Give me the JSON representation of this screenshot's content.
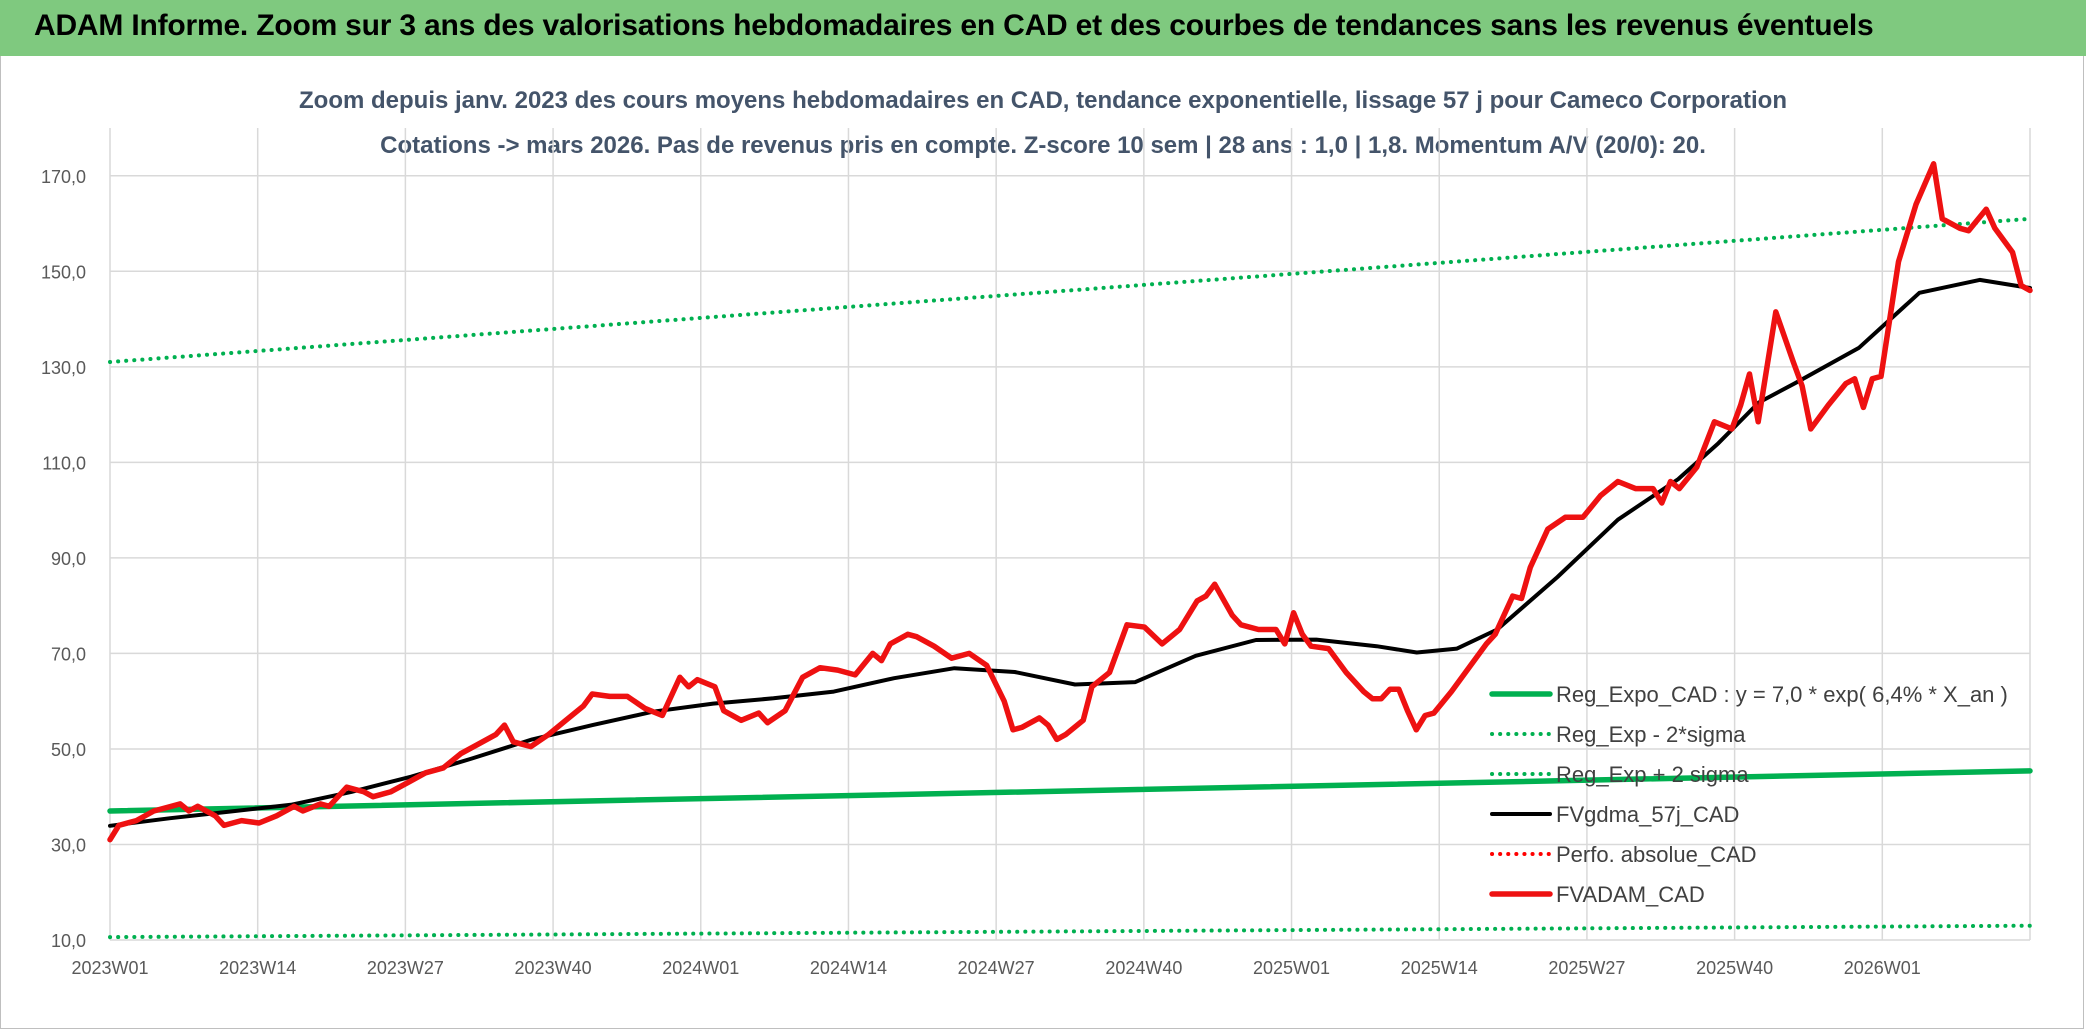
{
  "banner": {
    "title": "ADAM Informe. Zoom sur 3 ans des valorisations hebdomadaires en CAD et des courbes de tendances sans les revenus éventuels"
  },
  "colors": {
    "banner_bg": "#7fc97f",
    "reg_expo": "#00b050",
    "reg_band": "#00b050",
    "fvgdma": "#000000",
    "perfo": "#ff0000",
    "fvadam": "#ee1111",
    "grid": "#d9d9d9",
    "title_text": "#44546a"
  },
  "chart_data": {
    "type": "line",
    "title": "Zoom depuis janv. 2023 des cours moyens hebdomadaires en CAD, tendance exponentielle, lissage 57 j pour Cameco Corporation",
    "subtitle": "Cotations -> mars 2026. Pas de revenus pris en compte. Z-score 10 sem | 28 ans : 1,0 | 1,8. Momentum A/V (20/0): 20.",
    "xlabel": "",
    "ylabel": "",
    "ylim": [
      10,
      180
    ],
    "yticks": [
      "10,0",
      "30,0",
      "50,0",
      "70,0",
      "90,0",
      "110,0",
      "130,0",
      "150,0",
      "170,0"
    ],
    "x_tick_labels": [
      "2023W01",
      "2023W14",
      "2023W27",
      "2023W40",
      "2024W01",
      "2024W14",
      "2024W27",
      "2024W40",
      "2025W01",
      "2025W14",
      "2025W27",
      "2025W40",
      "2026W01"
    ],
    "n_weeks": 168,
    "grid": true,
    "legend_position": "bottom-right",
    "series": [
      {
        "name": "Reg_Expo_CAD : y = 7,0 * exp( 6,4% *  X_an )",
        "style": "solid-thick",
        "color": "#00b050",
        "points": [
          [
            0,
            37.0
          ],
          [
            167,
            45.4
          ]
        ]
      },
      {
        "name": "Reg_Exp - 2*sigma",
        "style": "dotted",
        "color": "#00b050",
        "points": [
          [
            0,
            10.6
          ],
          [
            167,
            13.0
          ]
        ]
      },
      {
        "name": "Reg_Exp + 2 sigma",
        "style": "dotted",
        "color": "#00b050",
        "points": [
          [
            0,
            131.0
          ],
          [
            167,
            161.0
          ]
        ]
      },
      {
        "name": "FVgdma_57j_CAD",
        "style": "solid",
        "color": "#000000",
        "points": [
          [
            0,
            33.9
          ],
          [
            6,
            35.5
          ],
          [
            12,
            36.9
          ],
          [
            18,
            38.3
          ],
          [
            24,
            41.0
          ],
          [
            30,
            44.2
          ],
          [
            36,
            48.0
          ],
          [
            42,
            52.0
          ],
          [
            48,
            55.0
          ],
          [
            54,
            57.8
          ],
          [
            60,
            59.5
          ],
          [
            66,
            60.6
          ],
          [
            72,
            62.0
          ],
          [
            78,
            64.8
          ],
          [
            84,
            66.9
          ],
          [
            90,
            66.1
          ],
          [
            96,
            63.5
          ],
          [
            102,
            64.0
          ],
          [
            108,
            69.5
          ],
          [
            114,
            72.8
          ],
          [
            120,
            72.9
          ],
          [
            126,
            71.5
          ],
          [
            130,
            70.2
          ],
          [
            134,
            71.0
          ],
          [
            138,
            75.0
          ],
          [
            144,
            86.0
          ],
          [
            150,
            98.0
          ],
          [
            156,
            106.5
          ],
          [
            160,
            114.0
          ],
          [
            164,
            122.5
          ],
          [
            168,
            127.0
          ],
          [
            174,
            134.0
          ],
          [
            180,
            145.5
          ],
          [
            186,
            148.2
          ],
          [
            191,
            146.5
          ]
        ]
      },
      {
        "name": "Perfo. absolue_CAD",
        "style": "dotted",
        "color": "#ff0000",
        "points": []
      },
      {
        "name": "FVADAM_CAD",
        "style": "solid-thick",
        "color": "#ee1111",
        "points": [
          [
            0,
            31.0
          ],
          [
            1,
            34.0
          ],
          [
            3,
            35.0
          ],
          [
            5,
            37.0
          ],
          [
            7,
            38.0
          ],
          [
            8,
            38.5
          ],
          [
            9,
            37.0
          ],
          [
            10,
            38.0
          ],
          [
            12,
            36.0
          ],
          [
            13,
            34.0
          ],
          [
            15,
            35.0
          ],
          [
            17,
            34.5
          ],
          [
            19,
            36.0
          ],
          [
            21,
            38.0
          ],
          [
            22,
            37.0
          ],
          [
            24,
            38.5
          ],
          [
            25,
            38.0
          ],
          [
            27,
            42.0
          ],
          [
            29,
            41.0
          ],
          [
            30,
            40.0
          ],
          [
            32,
            41.0
          ],
          [
            34,
            43.0
          ],
          [
            36,
            45.0
          ],
          [
            38,
            46.0
          ],
          [
            40,
            49.0
          ],
          [
            42,
            51.0
          ],
          [
            44,
            53.0
          ],
          [
            45,
            55.0
          ],
          [
            46,
            51.5
          ],
          [
            48,
            50.5
          ],
          [
            50,
            53.0
          ],
          [
            52,
            56.0
          ],
          [
            54,
            59.0
          ],
          [
            55,
            61.5
          ],
          [
            57,
            61.0
          ],
          [
            59,
            61.0
          ],
          [
            61,
            58.5
          ],
          [
            63,
            57.0
          ],
          [
            65,
            65.0
          ],
          [
            66,
            63.0
          ],
          [
            67,
            64.5
          ],
          [
            69,
            63.0
          ],
          [
            70,
            58.0
          ],
          [
            72,
            56.0
          ],
          [
            74,
            57.5
          ],
          [
            75,
            55.5
          ],
          [
            77,
            58.0
          ],
          [
            79,
            65.0
          ],
          [
            81,
            67.0
          ],
          [
            83,
            66.5
          ],
          [
            85,
            65.5
          ],
          [
            87,
            70.0
          ],
          [
            88,
            68.5
          ],
          [
            89,
            72.0
          ],
          [
            91,
            74.0
          ],
          [
            92,
            73.5
          ],
          [
            94,
            71.5
          ],
          [
            96,
            69.0
          ],
          [
            98,
            70.0
          ],
          [
            100,
            67.5
          ],
          [
            102,
            60.0
          ],
          [
            103,
            54.0
          ],
          [
            104,
            54.5
          ],
          [
            106,
            56.5
          ],
          [
            107,
            55.0
          ],
          [
            108,
            52.0
          ],
          [
            109,
            53.0
          ],
          [
            111,
            56.0
          ],
          [
            112,
            63.0
          ],
          [
            114,
            66.0
          ],
          [
            116,
            76.0
          ],
          [
            118,
            75.5
          ],
          [
            120,
            72.0
          ],
          [
            122,
            75.0
          ],
          [
            124,
            81.0
          ],
          [
            125,
            82.0
          ],
          [
            126,
            84.5
          ],
          [
            128,
            78.0
          ],
          [
            129,
            76.0
          ],
          [
            131,
            75.0
          ],
          [
            133,
            75.0
          ],
          [
            134,
            72.0
          ],
          [
            135,
            78.5
          ],
          [
            136,
            74.0
          ],
          [
            137,
            71.5
          ],
          [
            139,
            71.0
          ],
          [
            141,
            66.0
          ],
          [
            143,
            62.0
          ],
          [
            144,
            60.5
          ],
          [
            145,
            60.5
          ],
          [
            146,
            62.5
          ],
          [
            147,
            62.5
          ],
          [
            148,
            58.0
          ],
          [
            149,
            54.0
          ],
          [
            150,
            57.0
          ],
          [
            151,
            57.5
          ],
          [
            153,
            62.0
          ],
          [
            155,
            67.0
          ],
          [
            157,
            72.0
          ],
          [
            158,
            74.0
          ],
          [
            160,
            82.0
          ],
          [
            161,
            81.5
          ],
          [
            162,
            88.0
          ],
          [
            164,
            96.0
          ],
          [
            166,
            98.5
          ],
          [
            168,
            98.5
          ],
          [
            170,
            103.0
          ],
          [
            172,
            106.0
          ],
          [
            174,
            104.5
          ],
          [
            176,
            104.5
          ],
          [
            177,
            101.5
          ],
          [
            178,
            106.0
          ],
          [
            179,
            104.5
          ],
          [
            181,
            109.0
          ],
          [
            183,
            118.5
          ],
          [
            185,
            117.0
          ],
          [
            186,
            122.0
          ],
          [
            187,
            128.5
          ],
          [
            188,
            118.5
          ],
          [
            190,
            141.5
          ],
          [
            192,
            131.0
          ],
          [
            193,
            126.0
          ],
          [
            194,
            117.0
          ],
          [
            196,
            122.0
          ],
          [
            198,
            126.5
          ],
          [
            199,
            127.5
          ],
          [
            200,
            121.5
          ],
          [
            201,
            127.5
          ],
          [
            202,
            128.0
          ],
          [
            204,
            152.0
          ],
          [
            206,
            164.0
          ],
          [
            208,
            172.5
          ],
          [
            209,
            161.0
          ],
          [
            211,
            159.0
          ],
          [
            212,
            158.5
          ],
          [
            214,
            163.0
          ],
          [
            215,
            159.0
          ],
          [
            217,
            154.0
          ],
          [
            218,
            147.0
          ],
          [
            219,
            146.0
          ]
        ]
      }
    ]
  }
}
